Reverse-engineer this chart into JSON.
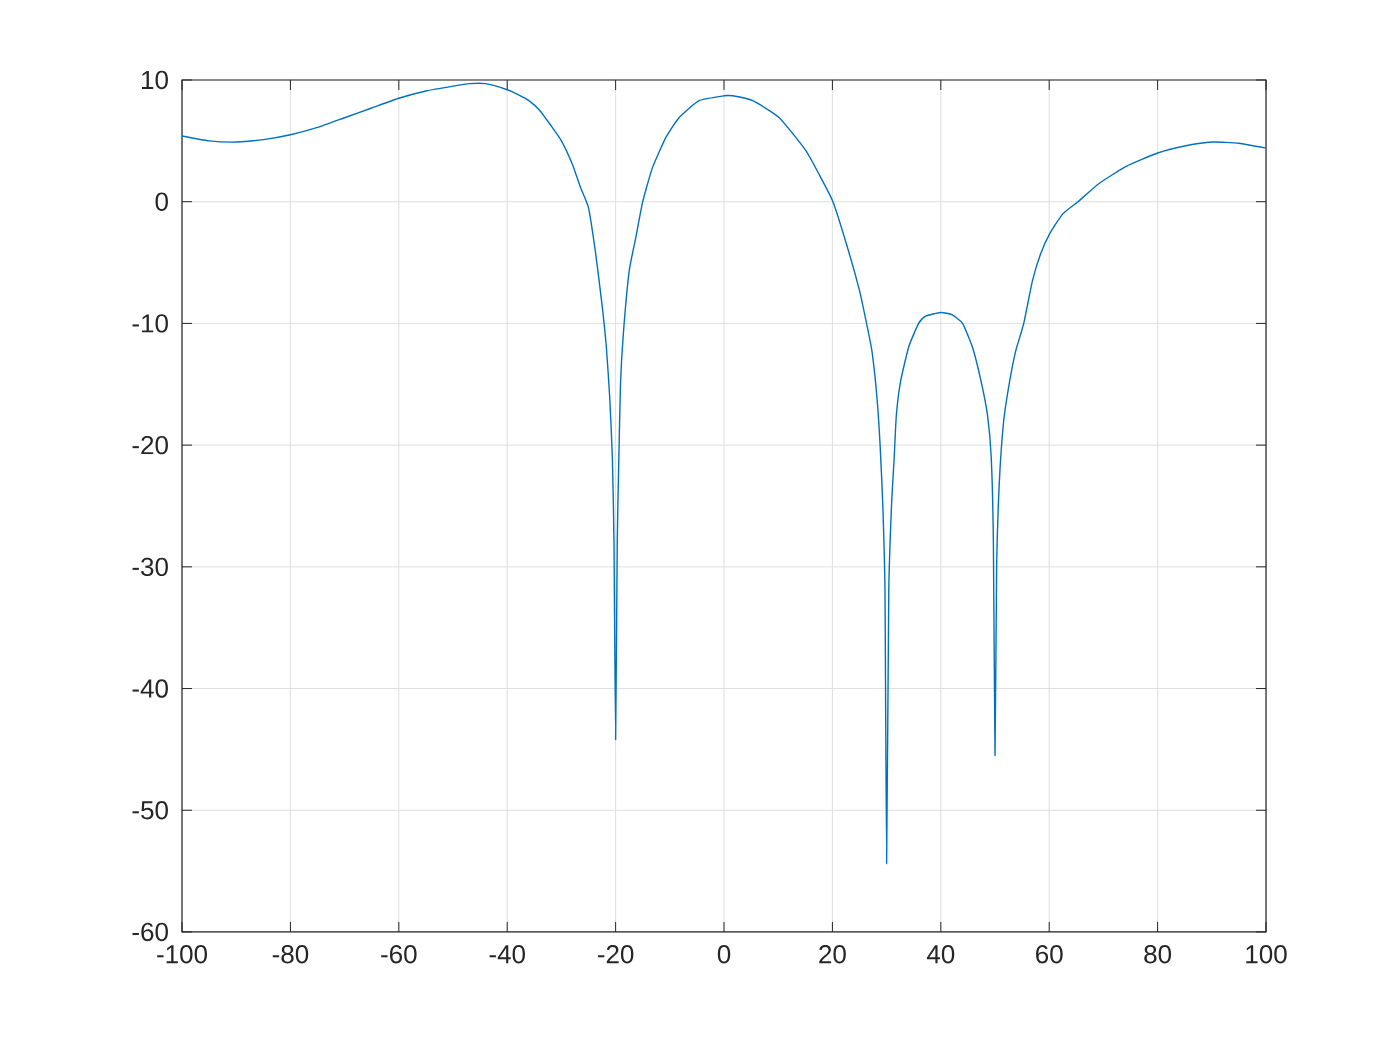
{
  "chart_data": {
    "type": "line",
    "color": "#0072bd",
    "line_style": "solid",
    "grid": true,
    "xlim": [
      -100,
      100
    ],
    "ylim": [
      -60,
      10
    ],
    "xticks": [
      -100,
      -80,
      -60,
      -40,
      -20,
      0,
      20,
      40,
      60,
      80,
      100
    ],
    "yticks": [
      -60,
      -50,
      -40,
      -30,
      -20,
      -10,
      0,
      10
    ],
    "x": [
      -100,
      -95,
      -90,
      -85,
      -80,
      -75,
      -70,
      -65,
      -60,
      -55,
      -50,
      -47,
      -44,
      -40,
      -38,
      -36,
      -34,
      -32,
      -30,
      -28,
      -26.5,
      -25,
      -23.7,
      -22.5,
      -21.7,
      -21.1,
      -20.6,
      -20.3,
      -20,
      -19.7,
      -19.4,
      -19.1,
      -18.6,
      -17.5,
      -16.3,
      -15,
      -13.2,
      -10.7,
      -8.3,
      -4.6,
      0,
      1.6,
      5.3,
      10.2,
      15.1,
      17.6,
      20.1,
      22.6,
      25,
      26.3,
      27.3,
      28.2,
      28.8,
      29.3,
      29.7,
      30,
      30.4,
      30.9,
      31.4,
      31.8,
      32.6,
      34.1,
      35.9,
      37.2,
      40,
      42.1,
      44,
      45.8,
      47.4,
      48.6,
      49.3,
      49.7,
      50,
      50.3,
      50.8,
      51.6,
      52.6,
      53.8,
      55.3,
      56.9,
      58.4,
      60,
      62.5,
      65.3,
      69.2,
      74.2,
      80,
      85.2,
      90.1,
      95,
      100
    ],
    "values": [
      5.4,
      5.0,
      4.9,
      5.1,
      5.5,
      6.1,
      6.9,
      7.7,
      8.5,
      9.1,
      9.5,
      9.7,
      9.7,
      9.2,
      8.8,
      8.3,
      7.5,
      6.3,
      5.0,
      3.1,
      1.2,
      -0.5,
      -4.2,
      -8.5,
      -12,
      -16,
      -21,
      -28,
      -44.2,
      -28,
      -21,
      -15,
      -11,
      -5.7,
      -3.0,
      0,
      2.8,
      5.3,
      6.9,
      8.3,
      8.7,
      8.7,
      8.3,
      6.9,
      4.2,
      2.2,
      0,
      -3.5,
      -7.3,
      -10,
      -12.3,
      -16,
      -20,
      -25,
      -32,
      -54.4,
      -32,
      -25,
      -21,
      -17.5,
      -14.7,
      -11.9,
      -10,
      -9.4,
      -9.1,
      -9.3,
      -10,
      -11.9,
      -14.7,
      -17.5,
      -21,
      -28,
      -45.5,
      -30,
      -23,
      -18,
      -15,
      -12.3,
      -10,
      -6.5,
      -4.3,
      -2.7,
      -1.0,
      0,
      1.5,
      2.9,
      4.0,
      4.6,
      4.9,
      4.8,
      4.4
    ]
  }
}
